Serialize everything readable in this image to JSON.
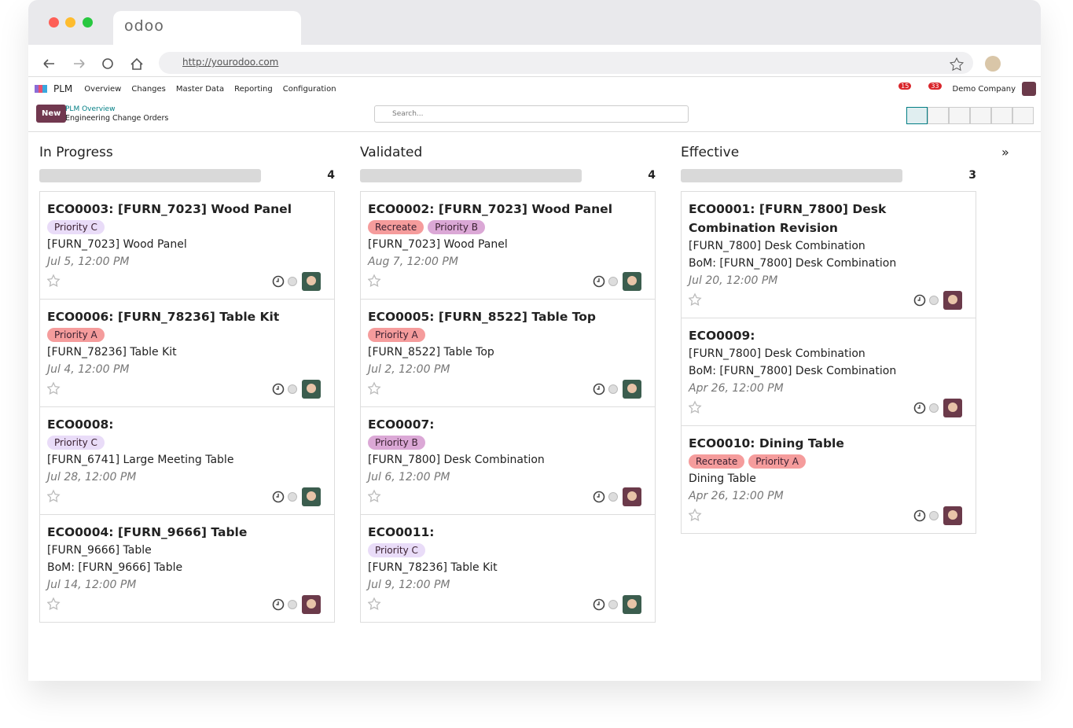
{
  "browser": {
    "tab_title": "odoo",
    "url": "http://yourodoo.com"
  },
  "navbar": {
    "app": "PLM",
    "menu": [
      "Overview",
      "Changes",
      "Master Data",
      "Reporting",
      "Configuration"
    ],
    "message_badge": "15",
    "activity_badge": "33",
    "company": "Demo Company"
  },
  "control_panel": {
    "new_button": "New",
    "breadcrumb": "PLM Overview",
    "title": "Engineering Change Orders",
    "search_placeholder": "Search..."
  },
  "columns": [
    {
      "name": "In Progress",
      "count": "4",
      "cards": [
        {
          "title": "ECO0003: [FURN_7023] Wood Panel",
          "tags": [
            {
              "label": "Priority C",
              "color": "#e9dcf8"
            }
          ],
          "lines": [
            "[FURN_7023] Wood Panel"
          ],
          "date": "Jul 5, 12:00 PM",
          "avatar": "#3b5d4e"
        },
        {
          "title": "ECO0006: [FURN_78236] Table Kit",
          "tags": [
            {
              "label": "Priority A",
              "color": "#f59c9c"
            }
          ],
          "lines": [
            "[FURN_78236] Table Kit"
          ],
          "date": "Jul 4, 12:00 PM",
          "avatar": "#3b5d4e"
        },
        {
          "title": "ECO0008:",
          "tags": [
            {
              "label": "Priority C",
              "color": "#e9dcf8"
            }
          ],
          "lines": [
            "[FURN_6741] Large Meeting Table"
          ],
          "date": "Jul 28, 12:00 PM",
          "avatar": "#3b5d4e"
        },
        {
          "title": "ECO0004: [FURN_9666] Table",
          "tags": [],
          "lines": [
            "[FURN_9666] Table",
            "BoM: [FURN_9666] Table"
          ],
          "date": "Jul 14, 12:00 PM",
          "avatar": "#6b3a4a"
        }
      ]
    },
    {
      "name": "Validated",
      "count": "4",
      "cards": [
        {
          "title": "ECO0002: [FURN_7023] Wood Panel",
          "tags": [
            {
              "label": "Recreate",
              "color": "#f59c9c"
            },
            {
              "label": "Priority B",
              "color": "#dba8d6"
            }
          ],
          "lines": [
            "[FURN_7023] Wood Panel"
          ],
          "date": "Aug 7, 12:00 PM",
          "avatar": "#3b5d4e"
        },
        {
          "title": "ECO0005: [FURN_8522] Table Top",
          "tags": [
            {
              "label": "Priority A",
              "color": "#f59c9c"
            }
          ],
          "lines": [
            "[FURN_8522] Table Top"
          ],
          "date": "Jul 2, 12:00 PM",
          "avatar": "#3b5d4e"
        },
        {
          "title": "ECO0007:",
          "tags": [
            {
              "label": "Priority B",
              "color": "#dba8d6"
            }
          ],
          "lines": [
            "[FURN_7800] Desk Combination"
          ],
          "date": "Jul 6, 12:00 PM",
          "avatar": "#6b3a4a"
        },
        {
          "title": "ECO0011:",
          "tags": [
            {
              "label": "Priority C",
              "color": "#e9dcf8"
            }
          ],
          "lines": [
            "[FURN_78236] Table Kit"
          ],
          "date": "Jul 9, 12:00 PM",
          "avatar": "#3b5d4e"
        }
      ]
    },
    {
      "name": "Effective",
      "count": "3",
      "cards": [
        {
          "title": "ECO0001: [FURN_7800] Desk Combination Revision",
          "tags": [],
          "lines": [
            "[FURN_7800] Desk Combination",
            "BoM: [FURN_7800] Desk Combination"
          ],
          "date": "Jul 20, 12:00 PM",
          "avatar": "#6b3a4a"
        },
        {
          "title": "ECO0009:",
          "tags": [],
          "lines": [
            "[FURN_7800] Desk Combination",
            "BoM: [FURN_7800] Desk Combination"
          ],
          "date": "Apr 26, 12:00 PM",
          "avatar": "#6b3a4a"
        },
        {
          "title": "ECO0010: Dining Table",
          "tags": [
            {
              "label": "Recreate",
              "color": "#f59c9c"
            },
            {
              "label": "Priority A",
              "color": "#f59c9c"
            }
          ],
          "lines": [
            "Dining Table"
          ],
          "date": "Apr 26, 12:00 PM",
          "avatar": "#6b3a4a"
        }
      ]
    }
  ]
}
